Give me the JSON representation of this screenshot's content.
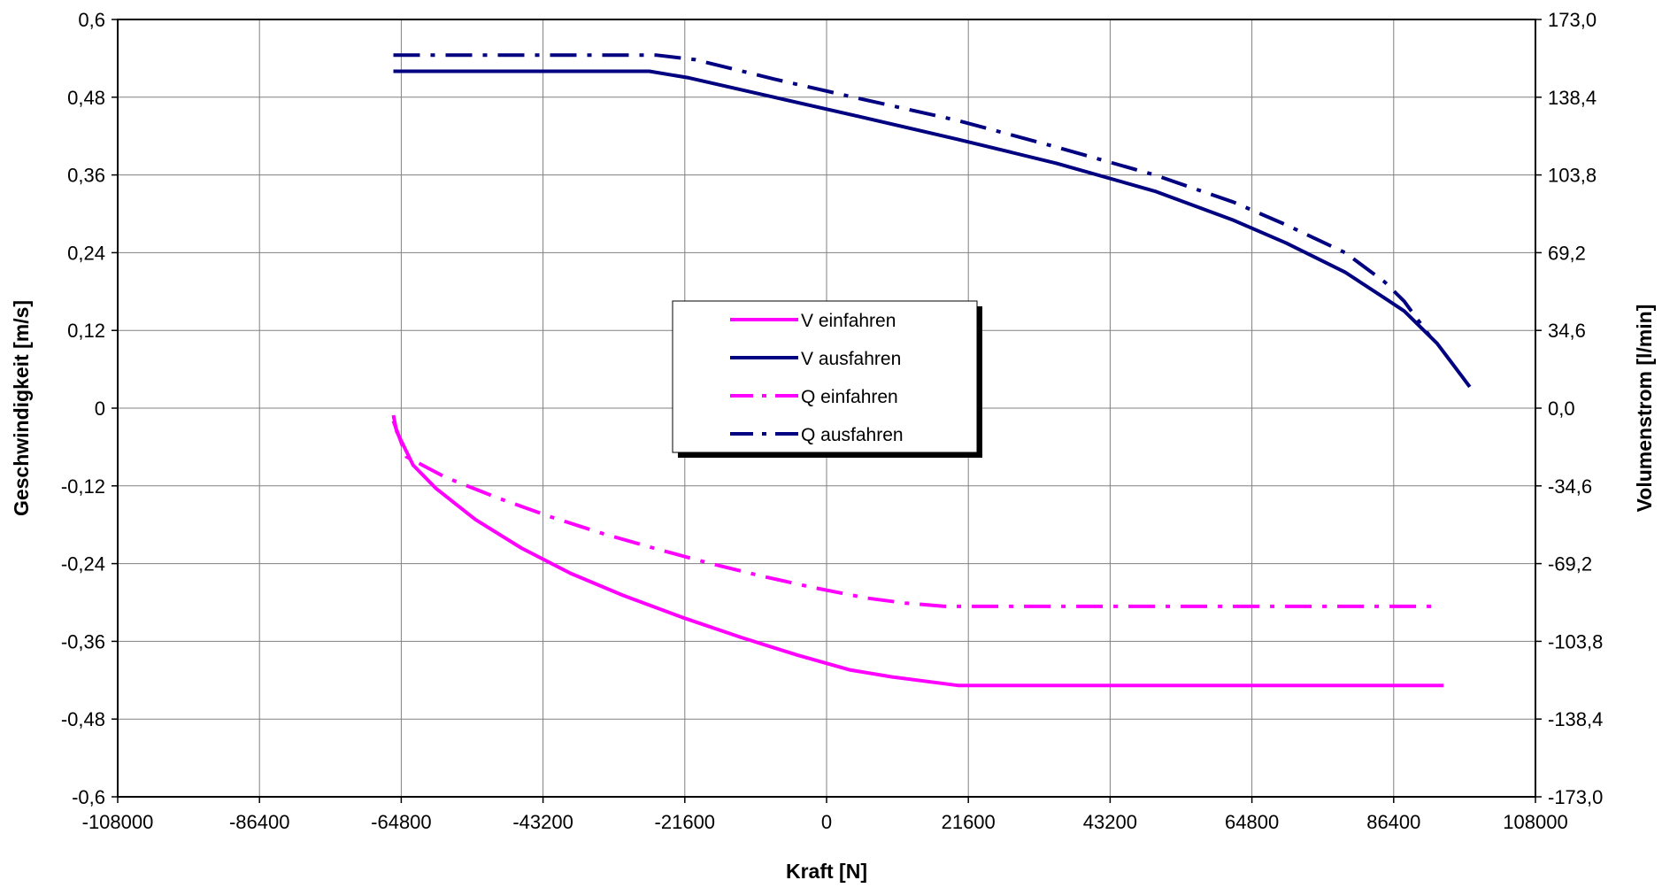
{
  "chart_data": {
    "type": "line",
    "title": "",
    "xlabel": "Kraft [N]",
    "ylabel": "Geschwindigkeit [m/s]",
    "y2label": "Volumenstrom [l/min]",
    "xlim": [
      -108000,
      108000
    ],
    "ylim": [
      -0.6,
      0.6
    ],
    "y2lim": [
      -173.0,
      173.0
    ],
    "grid": true,
    "legend_position": "center",
    "x_ticks": [
      "-108000",
      "-86400",
      "-64800",
      "-43200",
      "-21600",
      "0",
      "21600",
      "43200",
      "64800",
      "86400",
      "108000"
    ],
    "y_ticks": [
      "0,6",
      "0,48",
      "0,36",
      "0,24",
      "0,12",
      "0",
      "-0,12",
      "-0,24",
      "-0,36",
      "-0,48",
      "-0,6"
    ],
    "y2_ticks": [
      "173,0",
      "138,4",
      "103,8",
      "69,2",
      "34,6",
      "0,0",
      "-34,6",
      "-69,2",
      "-103,8",
      "-138,4",
      "-173,0"
    ],
    "series": [
      {
        "name": "V einfahren",
        "color": "#ff00ff",
        "style": "solid",
        "axis": "left",
        "x": [
          -66000,
          -65500,
          -63000,
          -59500,
          -53500,
          -46500,
          -39000,
          -31000,
          -22000,
          -13000,
          -4500,
          3500,
          10000,
          20000,
          94000
        ],
        "y": [
          -0.011,
          -0.036,
          -0.088,
          -0.124,
          -0.172,
          -0.216,
          -0.255,
          -0.289,
          -0.323,
          -0.354,
          -0.381,
          -0.404,
          -0.415,
          -0.428,
          -0.428
        ]
      },
      {
        "name": "V ausfahren",
        "color": "#000080",
        "style": "solid",
        "axis": "left",
        "x": [
          -66000,
          -27000,
          -21000,
          -8000,
          5000,
          20000,
          35000,
          50000,
          62000,
          70000,
          79000,
          85000,
          88000,
          91000,
          93000,
          94500,
          98000
        ],
        "y": [
          0.52,
          0.52,
          0.51,
          0.48,
          0.45,
          0.415,
          0.378,
          0.335,
          0.29,
          0.255,
          0.21,
          0.17,
          0.15,
          0.12,
          0.1,
          0.08,
          0.033
        ]
      },
      {
        "name": "Q einfahren",
        "color": "#ff00ff",
        "style": "dashdot",
        "axis": "left",
        "x": [
          -66000,
          -64000,
          -58000,
          -50000,
          -42000,
          -34000,
          -26000,
          -18000,
          -10000,
          -2000,
          6000,
          12000,
          18000,
          93000
        ],
        "y": [
          -0.02,
          -0.075,
          -0.107,
          -0.139,
          -0.168,
          -0.194,
          -0.217,
          -0.239,
          -0.259,
          -0.277,
          -0.293,
          -0.301,
          -0.306,
          -0.306
        ]
      },
      {
        "name": "Q ausfahren",
        "color": "#000080",
        "style": "dashdot",
        "axis": "left",
        "x": [
          -66000,
          -26000,
          -20000,
          -8000,
          5000,
          20000,
          35000,
          50000,
          62000,
          70000,
          79000,
          85000,
          88000,
          92000
        ],
        "y": [
          0.545,
          0.545,
          0.538,
          0.508,
          0.478,
          0.444,
          0.403,
          0.36,
          0.318,
          0.283,
          0.24,
          0.195,
          0.165,
          0.11
        ]
      }
    ]
  }
}
